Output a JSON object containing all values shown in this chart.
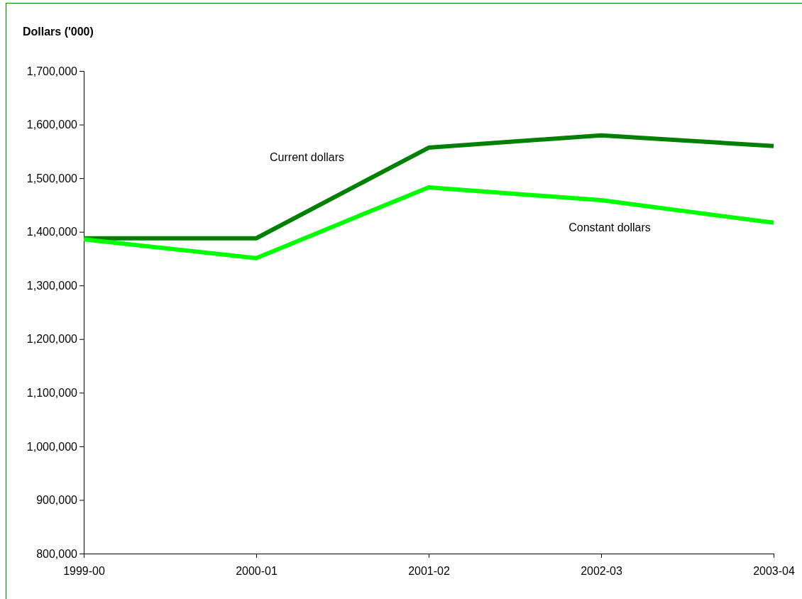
{
  "chart_data": {
    "type": "line",
    "ylabel": "Dollars ('000)",
    "categories": [
      "1999-00",
      "2000-01",
      "2001-02",
      "2002-03",
      "2003-04"
    ],
    "series": [
      {
        "name": "Current dollars",
        "color": "#008000",
        "values": [
          1388000,
          1388000,
          1557000,
          1580000,
          1560000
        ]
      },
      {
        "name": "Constant dollars",
        "color": "#00ff00",
        "values": [
          1386000,
          1351000,
          1483000,
          1459000,
          1417000
        ]
      }
    ],
    "ylim": [
      800000,
      1700000
    ],
    "yticks": [
      {
        "value": 800000,
        "label": "800,000"
      },
      {
        "value": 900000,
        "label": "900,000"
      },
      {
        "value": 1000000,
        "label": "1,000,000"
      },
      {
        "value": 1100000,
        "label": "1,100,000"
      },
      {
        "value": 1200000,
        "label": "1,200,000"
      },
      {
        "value": 1300000,
        "label": "1,300,000"
      },
      {
        "value": 1400000,
        "label": "1,400,000"
      },
      {
        "value": 1500000,
        "label": "1,500,000"
      },
      {
        "value": 1600000,
        "label": "1,600,000"
      },
      {
        "value": 1700000,
        "label": "1,700,000"
      }
    ],
    "grid": false,
    "legend": false,
    "marker": "none",
    "line_style": "solid"
  }
}
